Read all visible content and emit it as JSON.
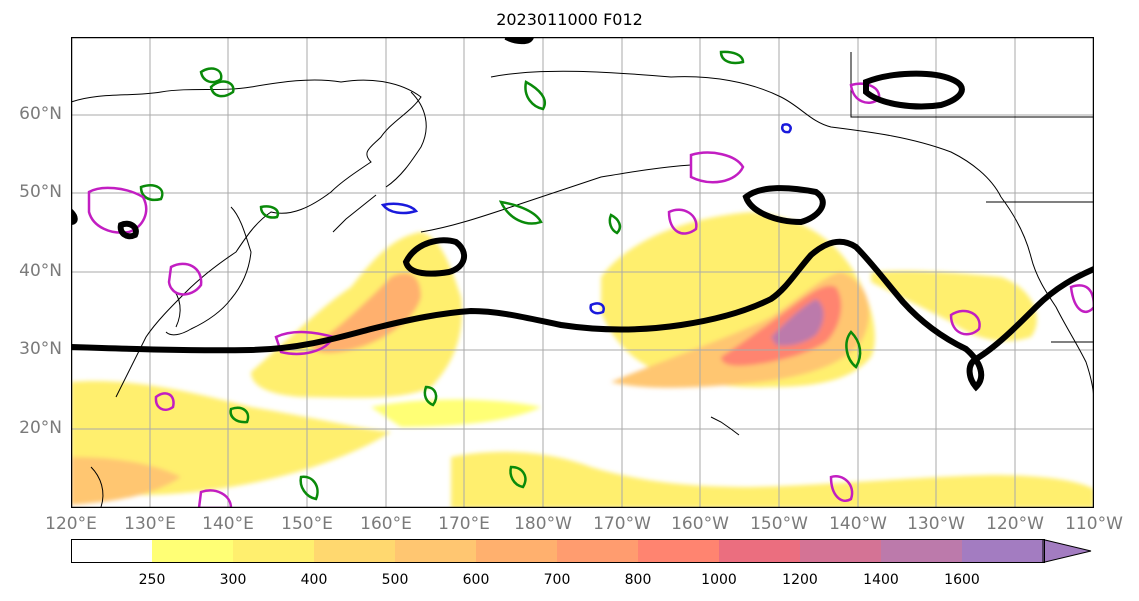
{
  "title": "2023011000 F012",
  "latitude_labels": [
    "60°N",
    "50°N",
    "40°N",
    "30°N",
    "20°N"
  ],
  "longitude_labels": [
    "120°E",
    "130°E",
    "140°E",
    "150°E",
    "160°E",
    "170°E",
    "180°W",
    "170°W",
    "160°W",
    "150°W",
    "140°W",
    "130°W",
    "120°W",
    "110°W"
  ],
  "colorbar": {
    "labels": [
      "250",
      "300",
      "400",
      "500",
      "600",
      "700",
      "800",
      "1000",
      "1200",
      "1400",
      "1600"
    ],
    "colors": [
      "#ffffff",
      "#ffff75",
      "#ffef6e",
      "#ffd86f",
      "#ffc671",
      "#ffb06e",
      "#ff9c6f",
      "#ff8470",
      "#eb6e7f",
      "#d47395",
      "#bc7aab",
      "#a37cc1"
    ],
    "extend": "max"
  },
  "colors": {
    "frame": "#000000",
    "coastline": "#000000",
    "grid": "#aaaaaa",
    "jet_contour": "#000000",
    "green_contour": "#0a8a0a",
    "magenta_contour": "#c21ec2",
    "blue_contour": "#1a1adc"
  }
}
